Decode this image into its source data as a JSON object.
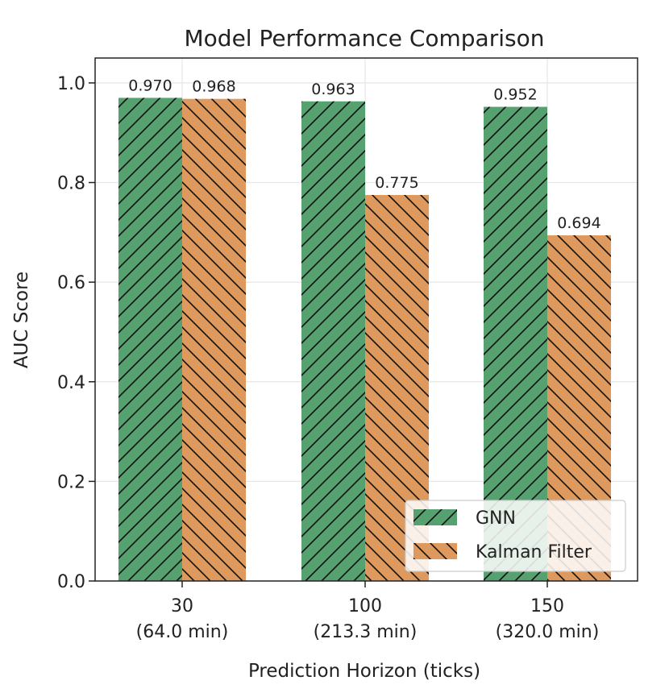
{
  "chart_data": {
    "type": "bar",
    "title": "Model Performance Comparison",
    "xlabel": "Prediction Horizon (ticks)",
    "ylabel": "AUC Score",
    "categories": [
      [
        "30",
        "(64.0 min)"
      ],
      [
        "100",
        "(213.3 min)"
      ],
      [
        "150",
        "(320.0 min)"
      ]
    ],
    "series": [
      {
        "name": "GNN",
        "values": [
          0.97,
          0.963,
          0.952
        ],
        "labels": [
          "0.970",
          "0.963",
          "0.952"
        ],
        "color": "#55a16f",
        "hatch": "forward-diagonal"
      },
      {
        "name": "Kalman Filter",
        "values": [
          0.968,
          0.775,
          0.694
        ],
        "labels": [
          "0.968",
          "0.775",
          "0.694"
        ],
        "color": "#de9a5e",
        "hatch": "back-diagonal"
      }
    ],
    "ylim": [
      0,
      1.05
    ],
    "yticks": [
      "0.0",
      "0.2",
      "0.4",
      "0.6",
      "0.8",
      "1.0"
    ],
    "grid": true,
    "legend_position": "bottom-right"
  }
}
